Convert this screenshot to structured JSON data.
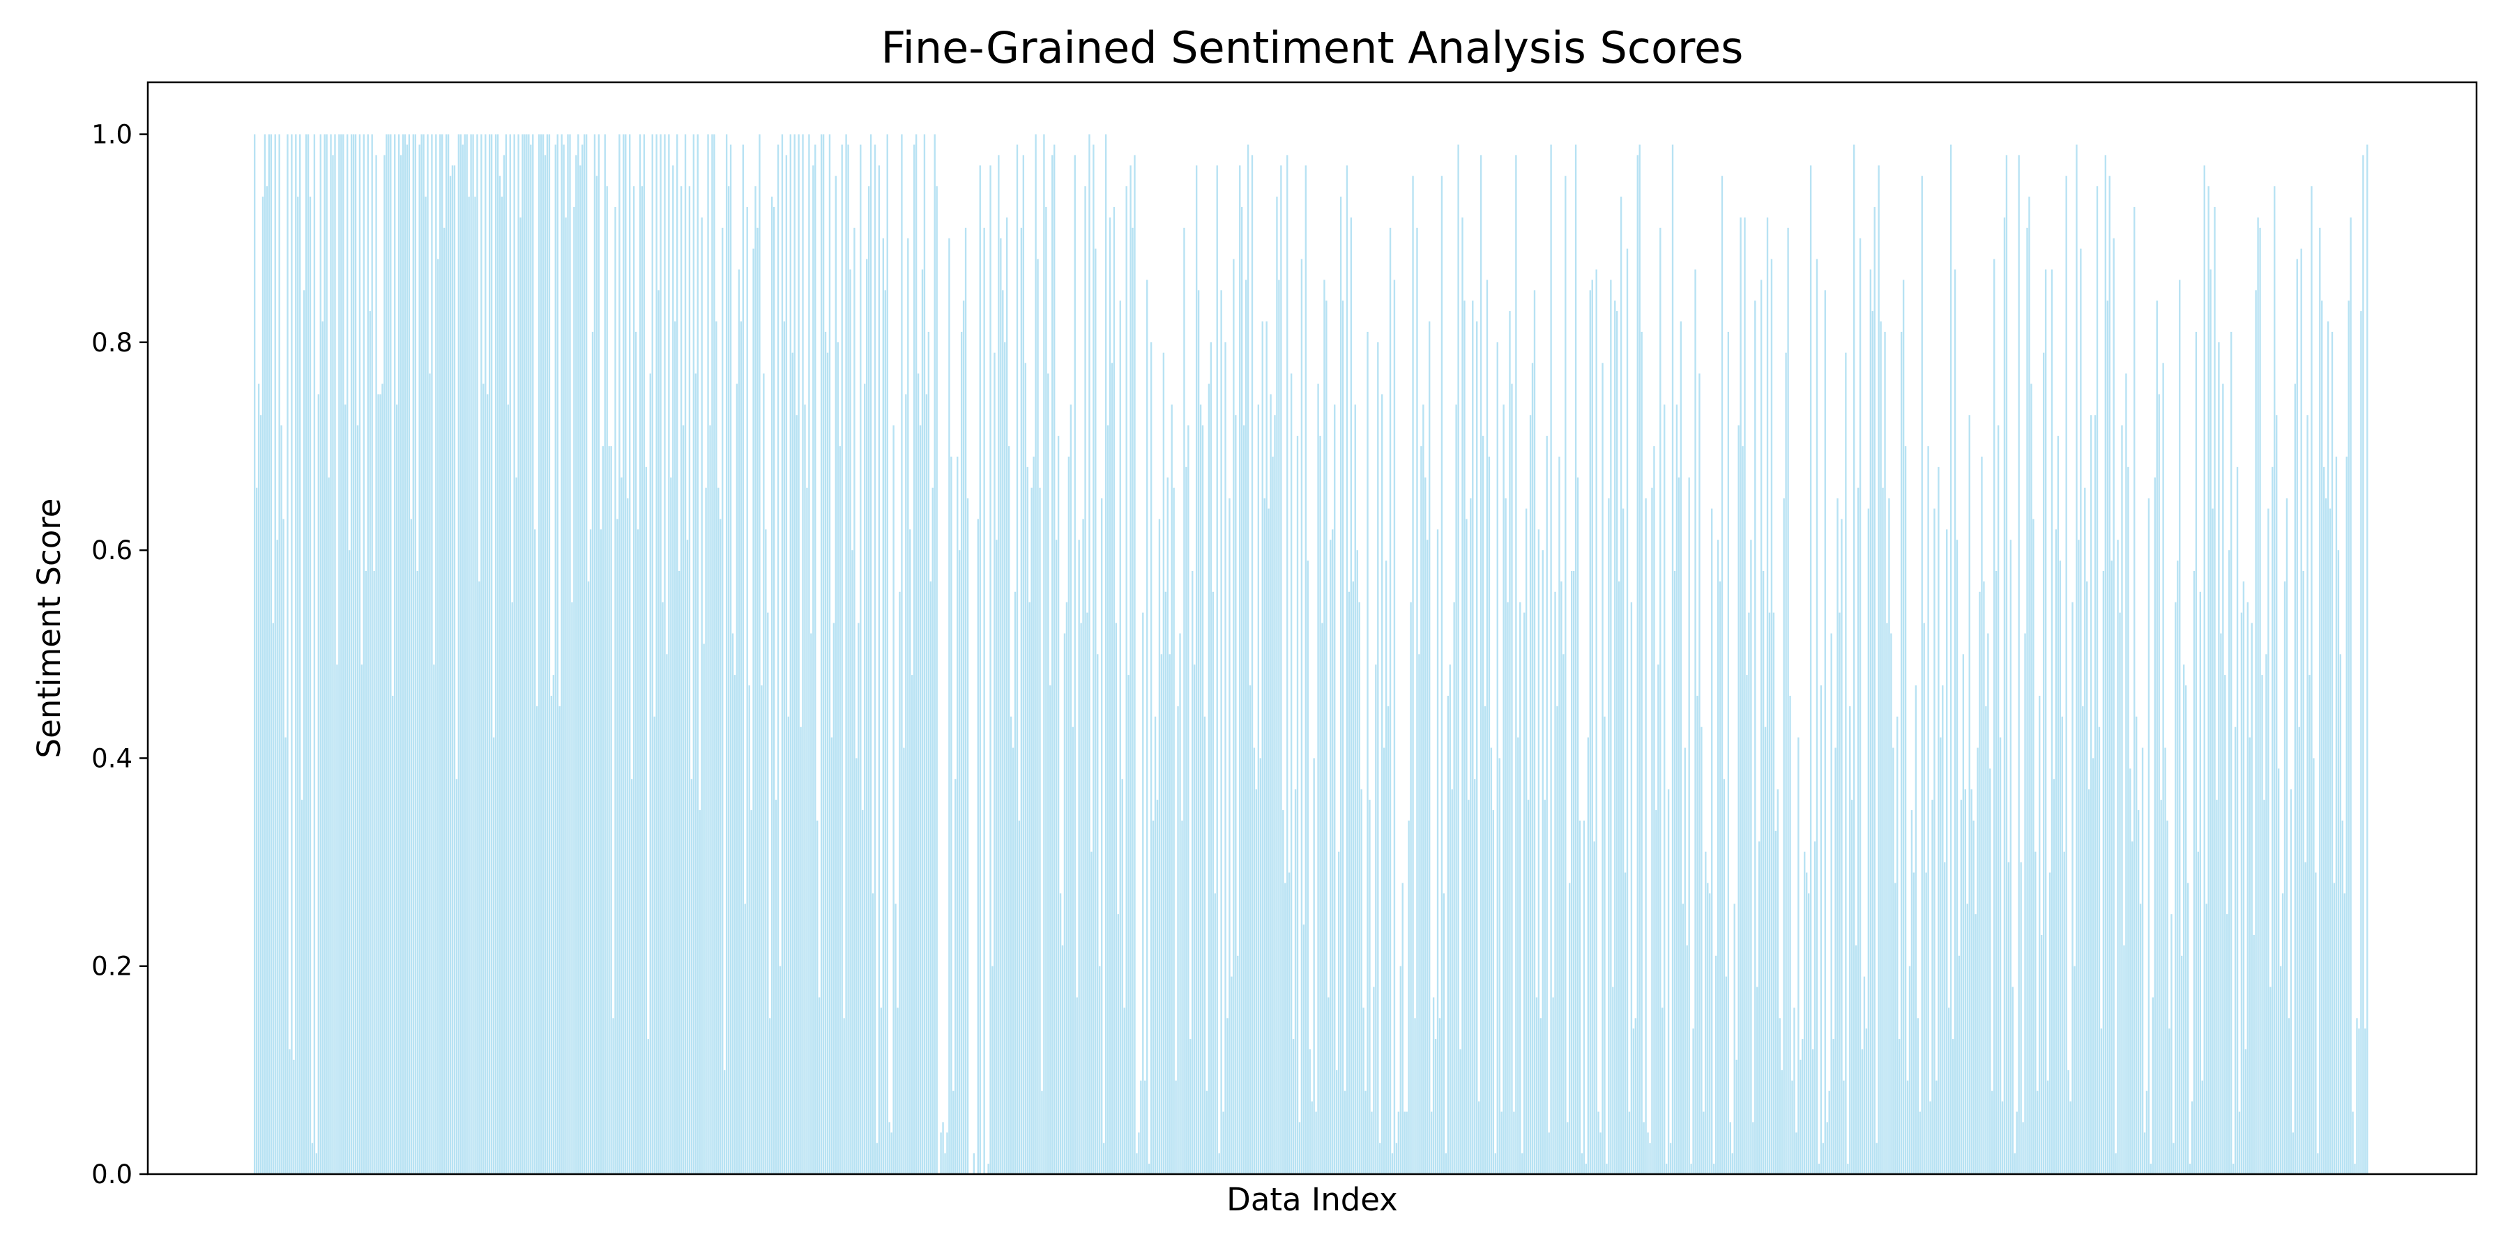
{
  "chart_data": {
    "type": "bar",
    "title": "Fine-Grained Sentiment Analysis Scores",
    "xlabel": "Data Index",
    "ylabel": "Sentiment Score",
    "ylim": [
      0.0,
      1.05
    ],
    "yticks": [
      "0.0",
      "0.2",
      "0.4",
      "0.6",
      "0.8",
      "1.0"
    ],
    "xticks_shown": false,
    "grid": false,
    "legend": false,
    "bar_color": "#87ceeb",
    "values": [
      1.0,
      0.66,
      0.76,
      0.73,
      0.94,
      1.0,
      0.95,
      1.0,
      1.0,
      0.53,
      1.0,
      0.61,
      1.0,
      0.72,
      0.63,
      0.42,
      1.0,
      0.12,
      1.0,
      0.11,
      1.0,
      0.94,
      1.0,
      0.36,
      0.85,
      1.0,
      1.0,
      0.94,
      0.03,
      1.0,
      0.02,
      0.75,
      1.0,
      0.82,
      1.0,
      1.0,
      0.67,
      1.0,
      0.98,
      1.0,
      0.49,
      1.0,
      1.0,
      1.0,
      0.74,
      1.0,
      0.6,
      1.0,
      1.0,
      1.0,
      0.72,
      1.0,
      0.49,
      1.0,
      0.58,
      1.0,
      0.83,
      1.0,
      0.58,
      0.98,
      0.75,
      0.75,
      0.76,
      0.98,
      1.0,
      1.0,
      1.0,
      0.46,
      1.0,
      0.74,
      1.0,
      0.98,
      1.0,
      1.0,
      0.99,
      1.0,
      0.63,
      1.0,
      1.0,
      0.58,
      0.99,
      1.0,
      1.0,
      0.94,
      1.0,
      0.77,
      1.0,
      0.49,
      1.0,
      0.88,
      1.0,
      1.0,
      0.91,
      1.0,
      1.0,
      0.96,
      0.97,
      0.97,
      0.38,
      1.0,
      1.0,
      0.99,
      1.0,
      1.0,
      0.94,
      1.0,
      1.0,
      0.94,
      1.0,
      0.57,
      1.0,
      0.76,
      1.0,
      0.75,
      1.0,
      1.0,
      0.42,
      1.0,
      1.0,
      0.96,
      0.94,
      0.98,
      1.0,
      0.74,
      1.0,
      0.55,
      1.0,
      0.67,
      1.0,
      0.92,
      1.0,
      1.0,
      1.0,
      1.0,
      0.99,
      1.0,
      0.62,
      0.45,
      1.0,
      1.0,
      1.0,
      0.98,
      1.0,
      1.0,
      0.46,
      0.48,
      0.99,
      1.0,
      0.45,
      1.0,
      0.99,
      0.92,
      1.0,
      1.0,
      0.55,
      0.93,
      0.98,
      1.0,
      0.97,
      0.99,
      1.0,
      1.0,
      0.57,
      0.62,
      0.81,
      1.0,
      0.96,
      1.0,
      0.62,
      0.7,
      1.0,
      0.95,
      0.7,
      0.7,
      0.15,
      0.93,
      0.63,
      1.0,
      0.67,
      1.0,
      1.0,
      0.65,
      1.0,
      0.38,
      0.95,
      0.81,
      0.62,
      1.0,
      0.95,
      1.0,
      0.68,
      0.13,
      0.77,
      1.0,
      0.44,
      1.0,
      0.85,
      1.0,
      0.55,
      1.0,
      0.5,
      1.0,
      0.67,
      0.97,
      0.82,
      1.0,
      0.58,
      0.95,
      0.72,
      1.0,
      0.61,
      0.95,
      0.38,
      1.0,
      0.77,
      1.0,
      0.35,
      0.92,
      0.51,
      0.66,
      1.0,
      0.72,
      1.0,
      1.0,
      0.82,
      0.66,
      0.63,
      0.91,
      0.1,
      1.0,
      0.95,
      0.99,
      0.52,
      0.48,
      0.76,
      0.87,
      0.82,
      0.99,
      0.26,
      0.93,
      0.47,
      0.35,
      0.89,
      0.95,
      0.91,
      1.0,
      0.47,
      0.77,
      0.62,
      0.54,
      0.15,
      0.94,
      0.93,
      0.36,
      0.99,
      0.2,
      1.0,
      0.82,
      0.98,
      0.44,
      1.0,
      0.79,
      1.0,
      0.73,
      1.0,
      0.43,
      1.0,
      0.74,
      0.66,
      1.0,
      0.52,
      0.97,
      0.99,
      0.34,
      0.17,
      1.0,
      1.0,
      0.81,
      0.79,
      1.0,
      0.42,
      0.53,
      0.96,
      0.8,
      0.7,
      0.99,
      0.15,
      1.0,
      0.99,
      0.87,
      0.6,
      0.91,
      0.4,
      0.53,
      0.99,
      0.35,
      0.76,
      0.88,
      0.95,
      1.0,
      0.27,
      0.99,
      0.03,
      0.97,
      0.16,
      0.9,
      0.85,
      1.0,
      0.05,
      0.04,
      0.72,
      0.26,
      0.16,
      0.56,
      1.0,
      0.41,
      0.75,
      0.9,
      0.62,
      0.48,
      0.99,
      1.0,
      0.77,
      0.72,
      0.87,
      1.0,
      0.75,
      0.81,
      0.57,
      0.66,
      1.0,
      0.95,
      0.0,
      0.04,
      0.05,
      0.02,
      0.04,
      0.9,
      0.69,
      0.08,
      0.38,
      0.69,
      0.6,
      0.81,
      0.84,
      0.91,
      0.65,
      0.0,
      0.0,
      0.02,
      0.0,
      0.63,
      0.97,
      0.0,
      0.91,
      0.0,
      0.01,
      0.97,
      0.2,
      0.79,
      0.61,
      0.98,
      0.9,
      0.85,
      0.8,
      0.92,
      0.7,
      0.44,
      0.41,
      0.56,
      0.99,
      0.34,
      0.91,
      0.98,
      0.78,
      0.68,
      0.55,
      0.66,
      0.69,
      1.0,
      0.88,
      0.66,
      0.08,
      1.0,
      0.93,
      0.77,
      0.47,
      0.98,
      0.99,
      0.61,
      0.71,
      0.27,
      0.22,
      0.52,
      0.55,
      0.69,
      0.74,
      0.43,
      0.98,
      0.17,
      0.61,
      0.53,
      0.63,
      0.95,
      0.54,
      1.0,
      0.31,
      0.99,
      0.89,
      0.5,
      0.2,
      0.65,
      0.03,
      1.0,
      0.72,
      0.92,
      0.78,
      0.93,
      0.53,
      0.25,
      0.84,
      0.38,
      0.16,
      0.95,
      0.48,
      0.97,
      0.91,
      0.98,
      0.02,
      0.04,
      0.09,
      0.54,
      0.09,
      0.86,
      0.01,
      0.8,
      0.34,
      0.44,
      0.36,
      0.63,
      0.5,
      0.79,
      0.56,
      0.67,
      0.5,
      0.74,
      0.66,
      0.09,
      0.45,
      0.52,
      0.34,
      0.91,
      0.68,
      0.72,
      0.13,
      0.58,
      0.49,
      0.97,
      0.85,
      0.74,
      0.72,
      0.44,
      0.08,
      0.76,
      0.8,
      0.56,
      0.27,
      0.97,
      0.02,
      0.85,
      0.06,
      0.8,
      0.15,
      0.65,
      0.19,
      0.88,
      0.73,
      0.21,
      0.97,
      0.93,
      0.72,
      0.86,
      0.99,
      0.47,
      0.98,
      0.41,
      0.37,
      0.74,
      0.4,
      0.82,
      0.65,
      0.82,
      0.64,
      0.75,
      0.69,
      0.73,
      0.94,
      0.86,
      0.97,
      0.35,
      0.28,
      0.98,
      0.29,
      0.77,
      0.13,
      0.37,
      0.71,
      0.05,
      0.88,
      0.24,
      0.97,
      0.59,
      0.12,
      0.07,
      0.4,
      0.06,
      0.76,
      0.71,
      0.53,
      0.86,
      0.84,
      0.17,
      0.61,
      0.62,
      0.74,
      0.1,
      0.31,
      0.94,
      0.84,
      0.08,
      0.97,
      0.56,
      0.92,
      0.57,
      0.74,
      0.6,
      0.55,
      0.37,
      0.16,
      0.08,
      0.81,
      0.36,
      0.06,
      0.18,
      0.49,
      0.8,
      0.03,
      0.75,
      0.41,
      0.59,
      0.45,
      0.91,
      0.02,
      0.86,
      0.03,
      0.06,
      0.2,
      0.28,
      0.06,
      0.06,
      0.34,
      0.55,
      0.96,
      0.15,
      0.91,
      0.5,
      0.7,
      0.74,
      0.67,
      0.61,
      0.82,
      0.06,
      0.17,
      0.13,
      0.62,
      0.15,
      0.96,
      0.27,
      0.02,
      0.46,
      0.49,
      0.37,
      0.55,
      0.74,
      0.99,
      0.12,
      0.92,
      0.84,
      0.63,
      0.36,
      0.65,
      0.84,
      0.38,
      0.82,
      0.07,
      0.98,
      0.71,
      0.45,
      0.86,
      0.69,
      0.41,
      0.35,
      0.02,
      0.8,
      0.4,
      0.06,
      0.74,
      0.65,
      0.55,
      0.83,
      0.76,
      0.06,
      0.98,
      0.42,
      0.55,
      0.02,
      0.54,
      0.64,
      0.36,
      0.73,
      0.78,
      0.85,
      0.17,
      0.62,
      0.15,
      0.6,
      0.36,
      0.71,
      0.04,
      0.99,
      0.17,
      0.56,
      0.45,
      0.69,
      0.57,
      0.5,
      0.96,
      0.05,
      0.28,
      0.58,
      0.58,
      0.99,
      0.67,
      0.34,
      0.02,
      0.34,
      0.01,
      0.42,
      0.85,
      0.86,
      0.32,
      0.87,
      0.06,
      0.04,
      0.78,
      0.44,
      0.01,
      0.65,
      0.86,
      0.18,
      0.84,
      0.83,
      0.57,
      0.94,
      0.64,
      0.29,
      0.89,
      0.06,
      0.55,
      0.14,
      0.15,
      0.98,
      0.99,
      0.81,
      0.05,
      0.65,
      0.04,
      0.03,
      0.66,
      0.7,
      0.35,
      0.49,
      0.91,
      0.16,
      0.74,
      0.01,
      0.37,
      0.03,
      0.99,
      0.58,
      0.74,
      0.67,
      0.82,
      0.26,
      0.41,
      0.22,
      0.67,
      0.01,
      0.14,
      0.87,
      0.46,
      0.77,
      0.43,
      0.06,
      0.31,
      0.28,
      0.27,
      0.64,
      0.01,
      0.21,
      0.61,
      0.57,
      0.96,
      0.38,
      0.19,
      0.81,
      0.05,
      0.02,
      0.26,
      0.11,
      0.72,
      0.92,
      0.7,
      0.92,
      0.48,
      0.54,
      0.61,
      0.05,
      0.84,
      0.18,
      0.32,
      0.86,
      0.58,
      0.43,
      0.92,
      0.54,
      0.88,
      0.54,
      0.33,
      0.37,
      0.15,
      0.1,
      0.65,
      0.79,
      0.91,
      0.46,
      0.09,
      0.16,
      0.04,
      0.42,
      0.11,
      0.13,
      0.31,
      0.29,
      0.27,
      0.97,
      0.12,
      0.32,
      0.88,
      0.01,
      0.47,
      0.03,
      0.85,
      0.05,
      0.08,
      0.52,
      0.13,
      0.41,
      0.65,
      0.54,
      0.63,
      0.09,
      0.79,
      0.01,
      0.45,
      0.36,
      0.99,
      0.22,
      0.66,
      0.9,
      0.12,
      0.19,
      0.14,
      0.64,
      0.87,
      0.83,
      0.93,
      0.03,
      0.97,
      0.82,
      0.66,
      0.81,
      0.53,
      0.65,
      0.52,
      0.41,
      0.28,
      0.44,
      0.13,
      0.81,
      0.86,
      0.7,
      0.09,
      0.2,
      0.35,
      0.29,
      0.47,
      0.15,
      0.06,
      0.96,
      0.53,
      0.29,
      0.7,
      0.07,
      0.36,
      0.64,
      0.09,
      0.68,
      0.42,
      0.47,
      0.3,
      0.62,
      0.16,
      0.99,
      0.13,
      0.87,
      0.61,
      0.21,
      0.36,
      0.5,
      0.37,
      0.26,
      0.73,
      0.37,
      0.34,
      0.25,
      0.41,
      0.56,
      0.69,
      0.57,
      0.45,
      0.52,
      0.39,
      0.08,
      0.88,
      0.58,
      0.72,
      0.42,
      0.07,
      0.92,
      0.98,
      0.3,
      0.61,
      0.18,
      0.02,
      0.06,
      0.98,
      0.3,
      0.05,
      0.52,
      0.91,
      0.94,
      0.76,
      0.63,
      0.31,
      0.08,
      0.46,
      0.23,
      0.79,
      0.87,
      0.09,
      0.29,
      0.87,
      0.38,
      0.62,
      0.71,
      0.59,
      0.44,
      0.31,
      0.96,
      0.1,
      0.07,
      0.55,
      0.2,
      0.99,
      0.61,
      0.89,
      0.45,
      0.66,
      0.57,
      0.37,
      0.73,
      0.4,
      0.73,
      0.95,
      0.43,
      0.14,
      0.58,
      0.98,
      0.84,
      0.96,
      0.59,
      0.9,
      0.02,
      0.61,
      0.54,
      0.72,
      0.22,
      0.77,
      0.68,
      0.39,
      0.32,
      0.93,
      0.44,
      0.35,
      0.26,
      0.41,
      0.04,
      0.08,
      0.65,
      0.01,
      0.17,
      0.67,
      0.84,
      0.75,
      0.36,
      0.78,
      0.41,
      0.34,
      0.14,
      0.25,
      0.03,
      0.55,
      0.59,
      0.86,
      0.21,
      0.49,
      0.47,
      0.28,
      0.01,
      0.07,
      0.58,
      0.81,
      0.31,
      0.56,
      0.09,
      0.97,
      0.26,
      0.95,
      0.87,
      0.64,
      0.93,
      0.36,
      0.8,
      0.52,
      0.76,
      0.48,
      0.25,
      0.6,
      0.81,
      0.01,
      0.43,
      0.68,
      0.06,
      0.54,
      0.57,
      0.12,
      0.55,
      0.42,
      0.53,
      0.23,
      0.85,
      0.92,
      0.91,
      0.48,
      0.36,
      0.5,
      0.64,
      0.18,
      0.68,
      0.95,
      0.73,
      0.39,
      0.2,
      0.27,
      0.57,
      0.65,
      0.15,
      0.37,
      0.04,
      0.76,
      0.88,
      0.43,
      0.89,
      0.58,
      0.3,
      0.73,
      0.48,
      0.95,
      0.4,
      0.29,
      0.02,
      0.91,
      0.84,
      0.68,
      0.65,
      0.82,
      0.64,
      0.81,
      0.28,
      0.69,
      0.6,
      0.5,
      0.34,
      0.27,
      0.69,
      0.84,
      0.92,
      0.06,
      0.01,
      0.15,
      0.14,
      0.83,
      0.98,
      0.14,
      0.99,
      0.0
    ]
  }
}
